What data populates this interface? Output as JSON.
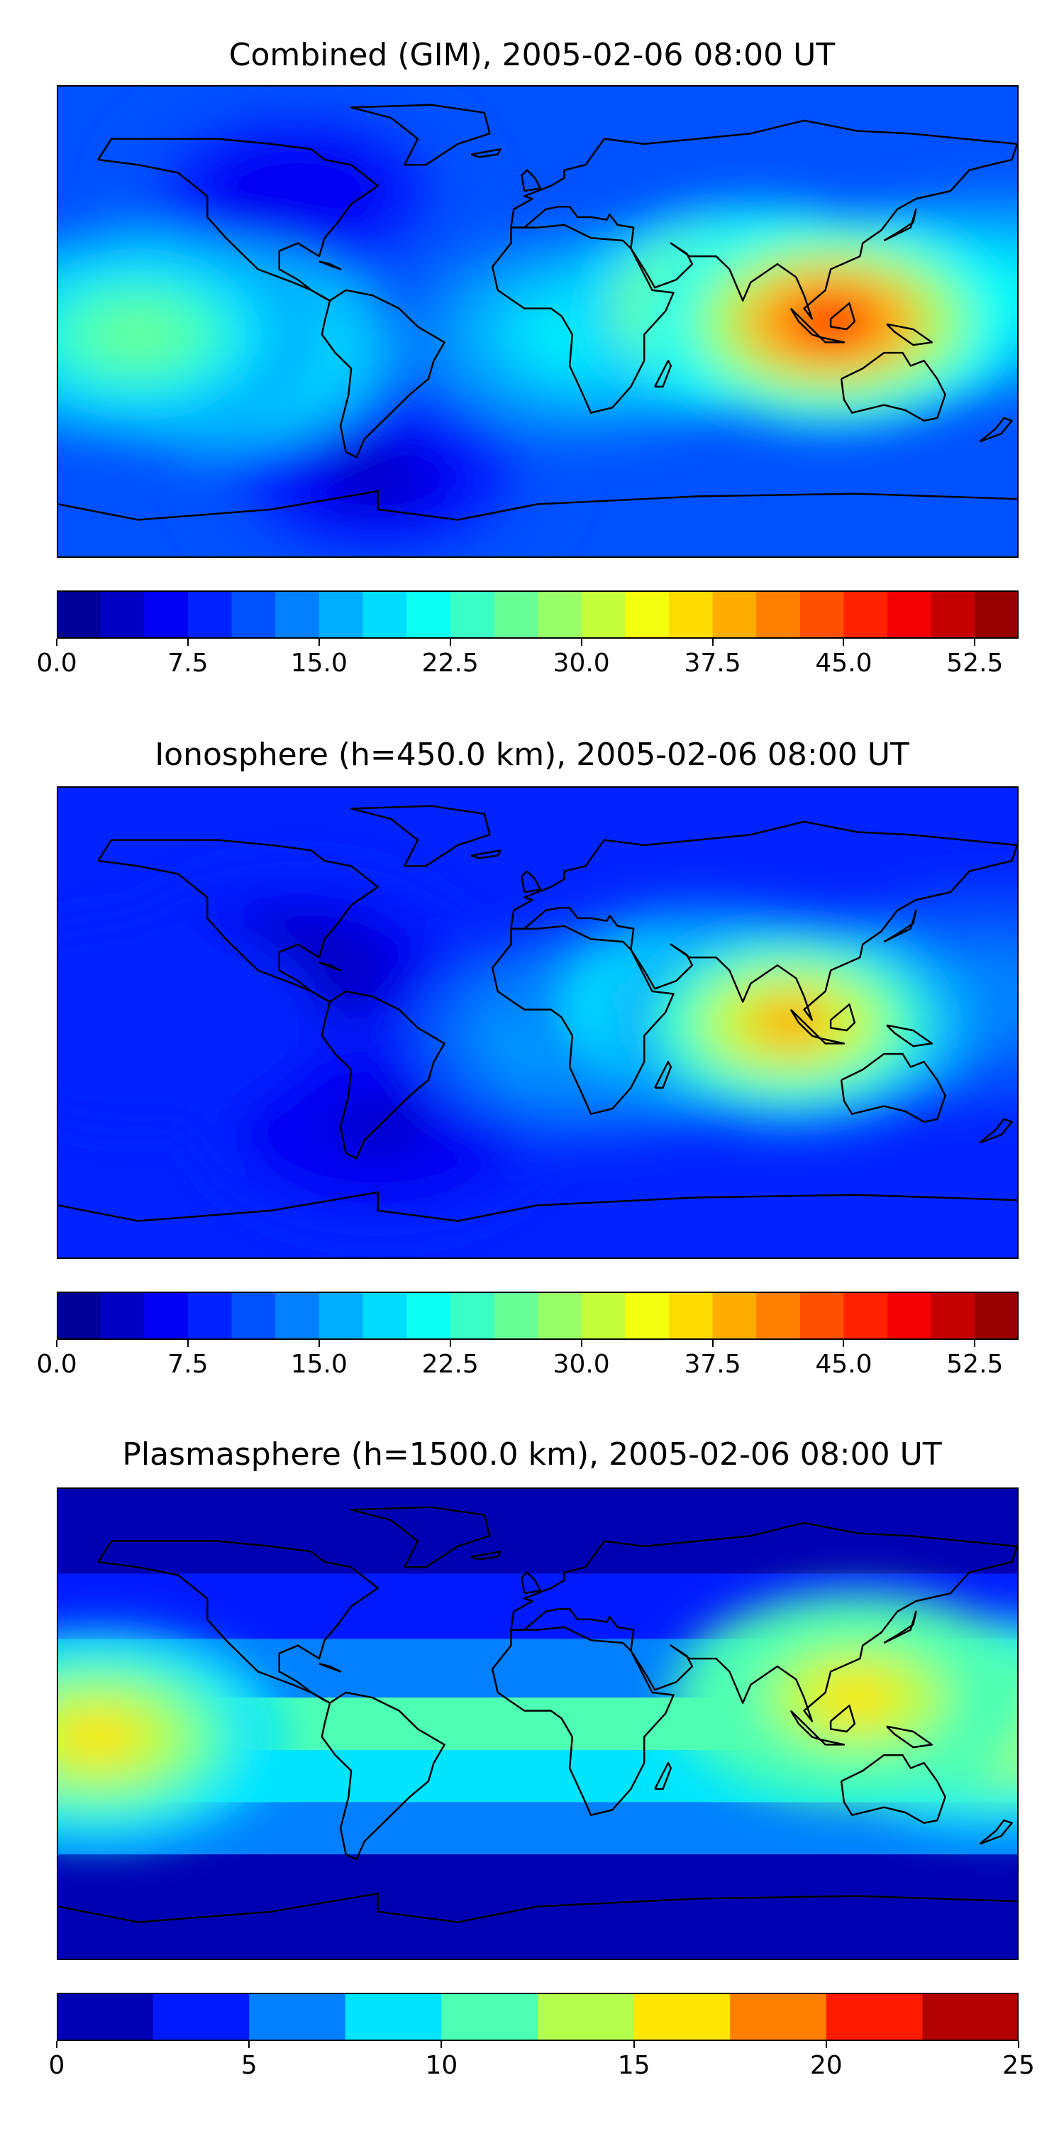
{
  "chart_data": [
    {
      "type": "heatmap",
      "title": "Combined (GIM), 2005-02-06 08:00 UT",
      "colorbar": {
        "min": 0.0,
        "max": 55.0,
        "step": 2.5,
        "ticks": [
          0.0,
          7.5,
          15.0,
          22.5,
          30.0,
          37.5,
          45.0,
          52.5
        ],
        "tick_labels": [
          "0.0",
          "7.5",
          "15.0",
          "22.5",
          "30.0",
          "37.5",
          "45.0",
          "52.5"
        ],
        "colormap": "jet"
      },
      "background_value": 12,
      "features": [
        {
          "lon": 110,
          "lat": 0,
          "value": 46
        },
        {
          "lon": 80,
          "lat": 5,
          "value": 38
        },
        {
          "lon": 20,
          "lat": -5,
          "value": 22
        },
        {
          "lon": -150,
          "lat": -5,
          "value": 26
        },
        {
          "lon": -120,
          "lat": -10,
          "value": 24
        },
        {
          "lon": -90,
          "lat": 50,
          "value": 5
        },
        {
          "lon": -60,
          "lat": -60,
          "value": 4
        },
        {
          "lon": 170,
          "lat": 10,
          "value": 20
        }
      ]
    },
    {
      "type": "heatmap",
      "title": "Ionosphere  (h=450.0 km), 2005-02-06 08:00 UT",
      "colorbar": {
        "min": 0.0,
        "max": 55.0,
        "step": 2.5,
        "ticks": [
          0.0,
          7.5,
          15.0,
          22.5,
          30.0,
          37.5,
          45.0,
          52.5
        ],
        "tick_labels": [
          "0.0",
          "7.5",
          "15.0",
          "22.5",
          "30.0",
          "37.5",
          "45.0",
          "52.5"
        ],
        "colormap": "jet"
      },
      "background_value": 9,
      "features": [
        {
          "lon": 95,
          "lat": 0,
          "value": 38
        },
        {
          "lon": 60,
          "lat": 5,
          "value": 28
        },
        {
          "lon": 20,
          "lat": -5,
          "value": 17
        },
        {
          "lon": -90,
          "lat": 20,
          "value": 3
        },
        {
          "lon": -60,
          "lat": -40,
          "value": 4
        },
        {
          "lon": -150,
          "lat": 0,
          "value": 9
        },
        {
          "lon": 170,
          "lat": 10,
          "value": 14
        }
      ]
    },
    {
      "type": "heatmap",
      "title": "Plasmasphere (h=1500.0 km), 2005-02-06 08:00 UT",
      "colorbar": {
        "min": 0,
        "max": 25,
        "step": 2.5,
        "ticks": [
          0,
          5,
          10,
          15,
          20,
          25
        ],
        "tick_labels": [
          "0",
          "5",
          "10",
          "15",
          "20",
          "25"
        ],
        "colormap": "jet"
      },
      "bands": [
        {
          "lat": 70,
          "value": 2
        },
        {
          "lat": 45,
          "value": 4
        },
        {
          "lat": 20,
          "value": 7
        },
        {
          "lat": 0,
          "value": 11
        },
        {
          "lat": -20,
          "value": 9
        },
        {
          "lat": -40,
          "value": 5
        },
        {
          "lat": -60,
          "value": 2
        }
      ],
      "features": [
        {
          "lon": -165,
          "lat": -5,
          "value": 15
        },
        {
          "lon": 120,
          "lat": 10,
          "value": 16
        },
        {
          "lon": 170,
          "lat": 0,
          "value": 14
        }
      ]
    }
  ]
}
